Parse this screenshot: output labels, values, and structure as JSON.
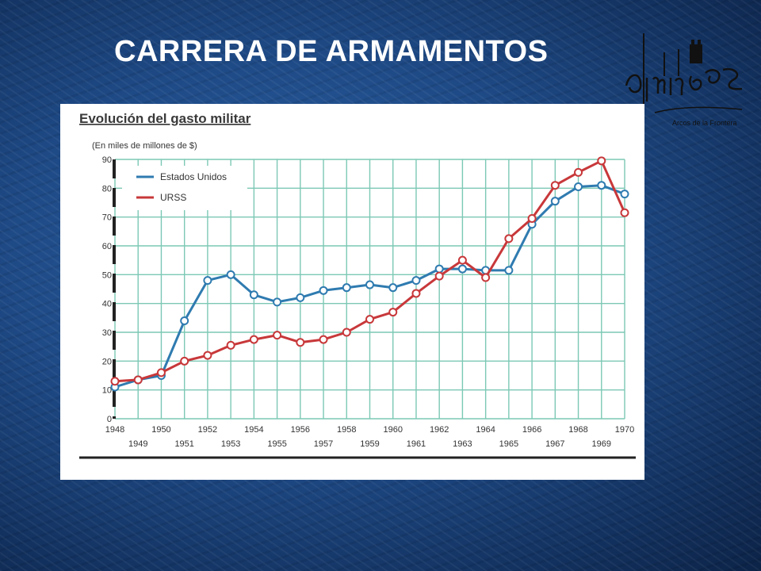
{
  "slide": {
    "title": "CARRERA DE ARMAMENTOS",
    "logo_text": "alminares",
    "logo_subtitle": "Arcos de la Frontera"
  },
  "colors": {
    "background": "#1e4a86",
    "grid": "#7cc8b4",
    "usa": "#2f7bb0",
    "ussr": "#c8383a",
    "axis_bar": "#222222"
  },
  "chart_data": {
    "type": "line",
    "title": "Evolución del gasto militar",
    "subtitle": "(En miles de millones de $)",
    "x_ticks_top": [
      "1948",
      "1950",
      "1952",
      "1954",
      "1956",
      "1958",
      "1960",
      "1962",
      "1964",
      "1966",
      "1968",
      "1970"
    ],
    "x_ticks_bottom": [
      "1949",
      "1951",
      "1953",
      "1955",
      "1957",
      "1959",
      "1961",
      "1963",
      "1965",
      "1967",
      "1969"
    ],
    "y_ticks": [
      "0",
      "10",
      "20",
      "30",
      "40",
      "50",
      "60",
      "70",
      "80",
      "90"
    ],
    "xlim": [
      1948,
      1970
    ],
    "ylim": [
      0,
      90
    ],
    "grid": true,
    "legend_position": "top-left",
    "x": [
      1948,
      1949,
      1950,
      1951,
      1952,
      1953,
      1954,
      1955,
      1956,
      1957,
      1958,
      1959,
      1960,
      1961,
      1962,
      1963,
      1964,
      1965,
      1966,
      1967,
      1968,
      1969,
      1970
    ],
    "series": [
      {
        "name": "Estados Unidos",
        "color": "#2f7bb0",
        "values": [
          11,
          13.5,
          15,
          34,
          48,
          50,
          43,
          40.5,
          42,
          44.5,
          45.5,
          46.5,
          45.5,
          48,
          52,
          52,
          51.5,
          51.5,
          67.5,
          75.5,
          80.5,
          81,
          78
        ]
      },
      {
        "name": "URSS",
        "color": "#c8383a",
        "values": [
          13,
          13.5,
          16,
          20,
          22,
          25.5,
          27.5,
          29,
          26.5,
          27.5,
          30,
          34.5,
          37,
          43.5,
          49.5,
          55,
          49,
          62.5,
          69.5,
          81,
          85.5,
          89.5,
          71.5
        ]
      }
    ]
  }
}
